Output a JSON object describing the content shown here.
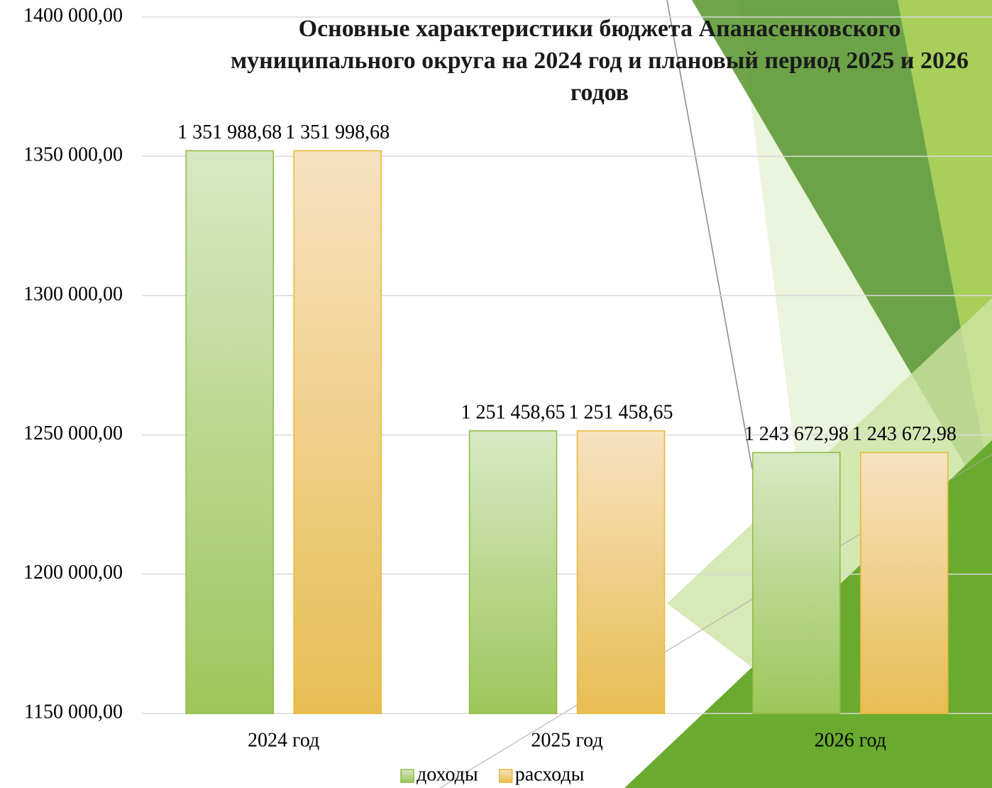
{
  "chart_data": {
    "type": "bar",
    "title": "Основные характеристики бюджета Апанасенковского муниципального округа на 2024 год и плановый период 2025 и 2026 годов",
    "categories": [
      "2024 год",
      "2025 год",
      "2026 год"
    ],
    "series": [
      {
        "name": "доходы",
        "color": "#8dbb3f",
        "values": [
          1351988.68,
          1251458.65,
          1243672.98
        ],
        "value_labels": [
          "1 351 988,68",
          "1 251 458,65",
          "1 243 672,98"
        ]
      },
      {
        "name": "расходы",
        "color": "#e6b833",
        "values": [
          1351998.68,
          1251458.65,
          1243672.98
        ],
        "value_labels": [
          "1 351 998,68",
          "1 251 458,65",
          "1 243 672,98"
        ]
      }
    ],
    "ylim": [
      1150000,
      1400000
    ],
    "yticks": [
      {
        "value": 1150000,
        "label": "1150 000,00"
      },
      {
        "value": 1200000,
        "label": "1200 000,00"
      },
      {
        "value": 1250000,
        "label": "1250 000,00"
      },
      {
        "value": 1300000,
        "label": "1300 000,00"
      },
      {
        "value": 1350000,
        "label": "1350 000,00"
      },
      {
        "value": 1400000,
        "label": "1400 000,00"
      }
    ],
    "grid": true,
    "legend": "bottom"
  }
}
